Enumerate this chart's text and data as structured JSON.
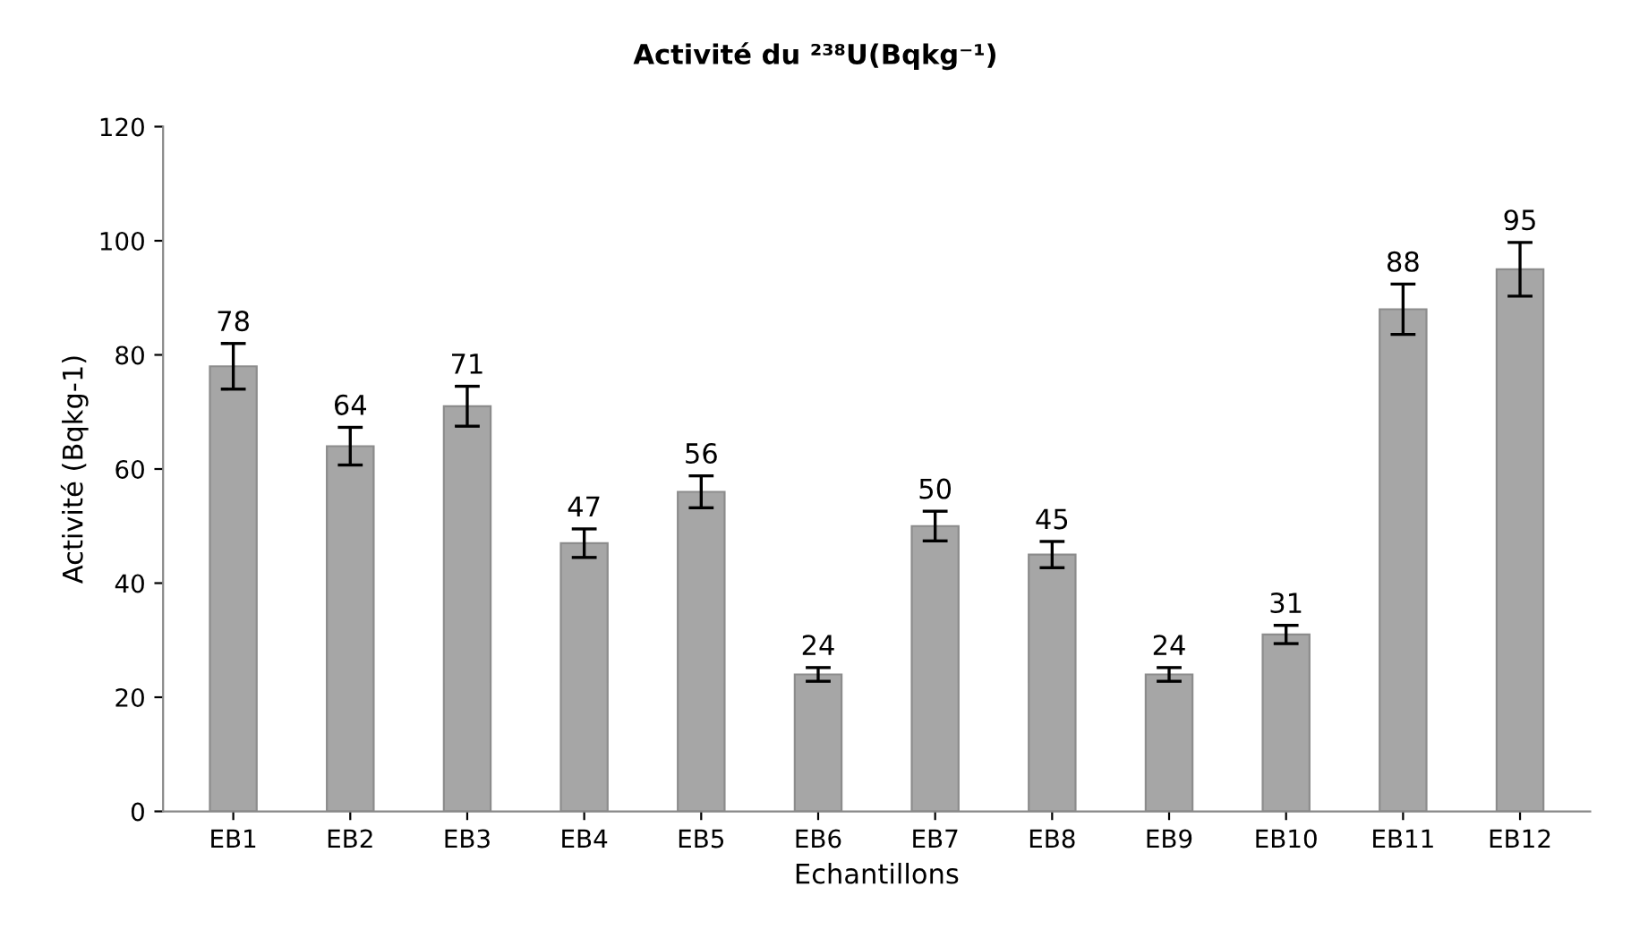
{
  "chart_data": {
    "type": "bar",
    "title": "Activité du ²³⁸U(Bqkg⁻¹)",
    "xlabel": "Echantillons",
    "ylabel": "Activité (Bqkg-1)",
    "categories": [
      "EB1",
      "EB2",
      "EB3",
      "EB4",
      "EB5",
      "EB6",
      "EB7",
      "EB8",
      "EB9",
      "EB10",
      "EB11",
      "EB12"
    ],
    "values": [
      78,
      64,
      71,
      47,
      56,
      24,
      50,
      45,
      24,
      31,
      88,
      95
    ],
    "errors": [
      4,
      3.3,
      3.5,
      2.5,
      2.8,
      1.2,
      2.6,
      2.3,
      1.2,
      1.6,
      4.4,
      4.7
    ],
    "color": "#a6a6a6",
    "data_labels": true,
    "ylim": [
      0,
      120
    ],
    "yticks": [
      0,
      20,
      40,
      60,
      80,
      100,
      120
    ],
    "grid": false,
    "legend": false
  }
}
